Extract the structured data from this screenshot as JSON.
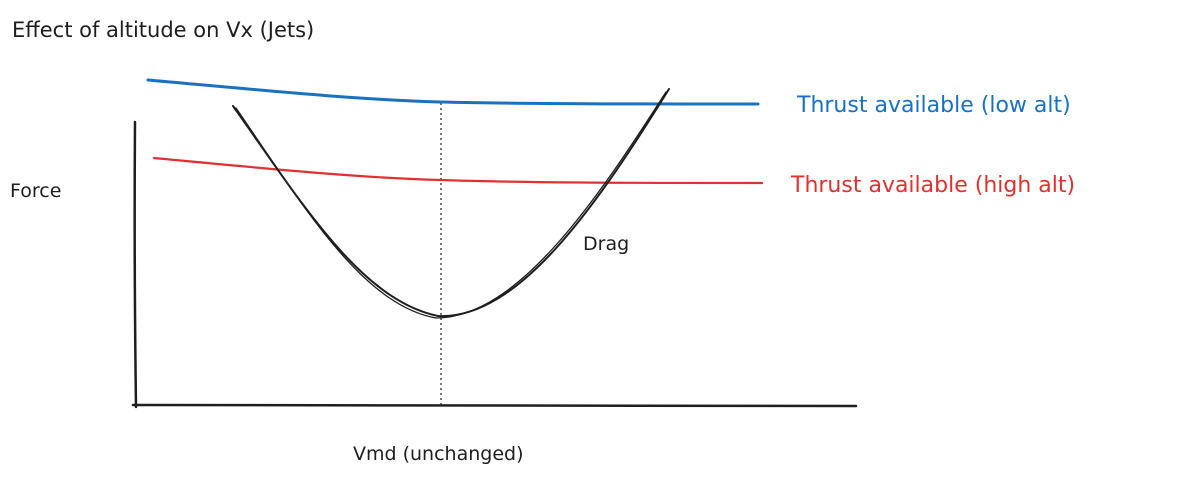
{
  "title": "Effect of altitude on Vx (Jets)",
  "y_axis_label": "Force",
  "x_axis_label": "Vmd (unchanged)",
  "drag_label": "Drag",
  "thrust_low": {
    "label": "Thrust available (low alt)",
    "color": "#1971c2"
  },
  "thrust_high": {
    "label": "Thrust available (high alt)",
    "color": "#e03131"
  },
  "drag_color": "#1e1e1e",
  "axis_color": "#1e1e1e"
}
